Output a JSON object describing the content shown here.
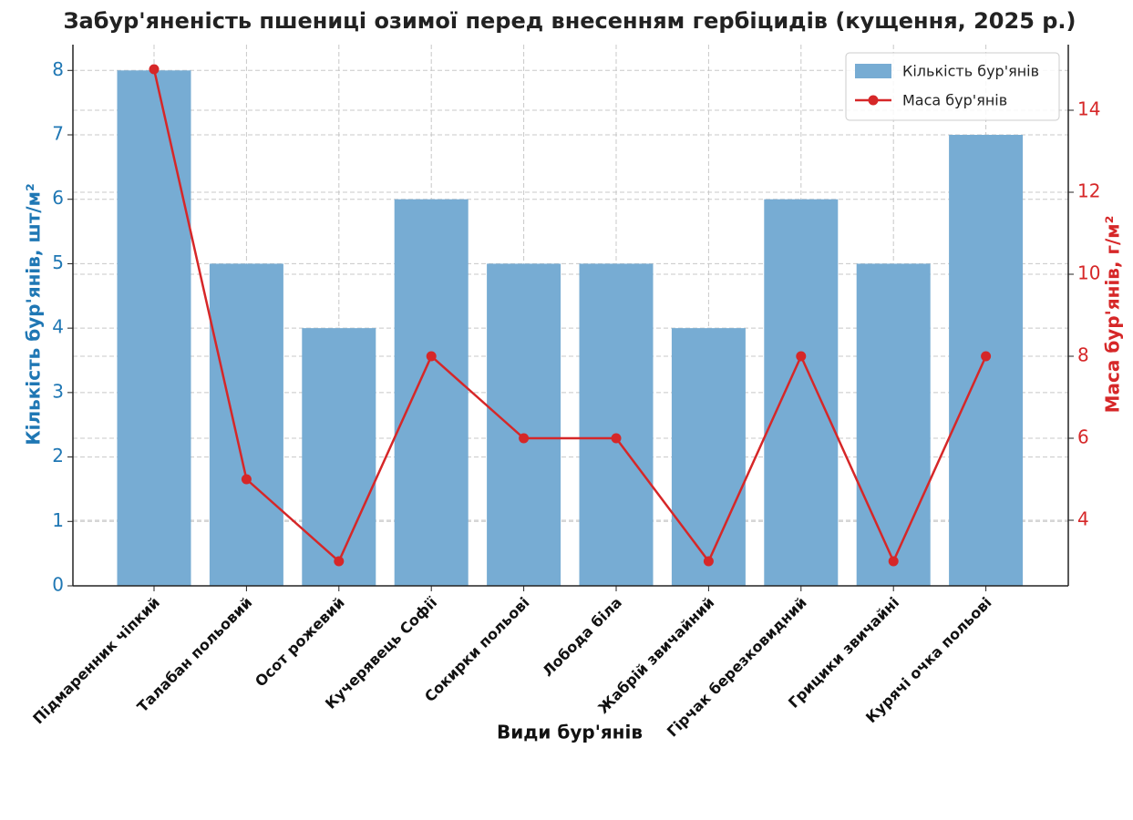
{
  "chart_data": {
    "type": "bar_line",
    "title": "Забур'яненість пшениці озимої перед внесенням гербіцидів (кущення, 2025 р.)",
    "xlabel": "Види бур'янів",
    "ylabel": "Кількість бур'янів, шт/м²",
    "y2label": "Маса бур'янів, г/м²",
    "categories": [
      "Підмаренник чіпкий",
      "Талабан польовий",
      "Осот рожевий",
      "Кучерявець Софії",
      "Сокирки польові",
      "Лобода біла",
      "Жабрій звичайний",
      "Гірчак березковидний",
      "Грицики звичайні",
      "Курячі очка польові"
    ],
    "series": [
      {
        "name": "Кількість бур'янів",
        "color": "#77acd3",
        "type": "bar",
        "values": [
          8,
          5,
          4,
          6,
          5,
          5,
          4,
          6,
          5,
          7
        ]
      },
      {
        "name": "Маса бур'янів",
        "color": "#d62728",
        "type": "line",
        "axis": "y2",
        "values": [
          15,
          5,
          3,
          8,
          6,
          6,
          3,
          8,
          3,
          8
        ]
      }
    ],
    "ylim": [
      0,
      8.4
    ],
    "yticks": [
      0,
      1,
      2,
      3,
      4,
      5,
      6,
      7,
      8
    ],
    "y2lim": [
      2.4,
      15.6
    ],
    "y2ticks": [
      4,
      6,
      8,
      10,
      12,
      14
    ],
    "ycolor": "#1f77b4",
    "y2color": "#d62728",
    "grid": true,
    "legend": "upper right"
  }
}
